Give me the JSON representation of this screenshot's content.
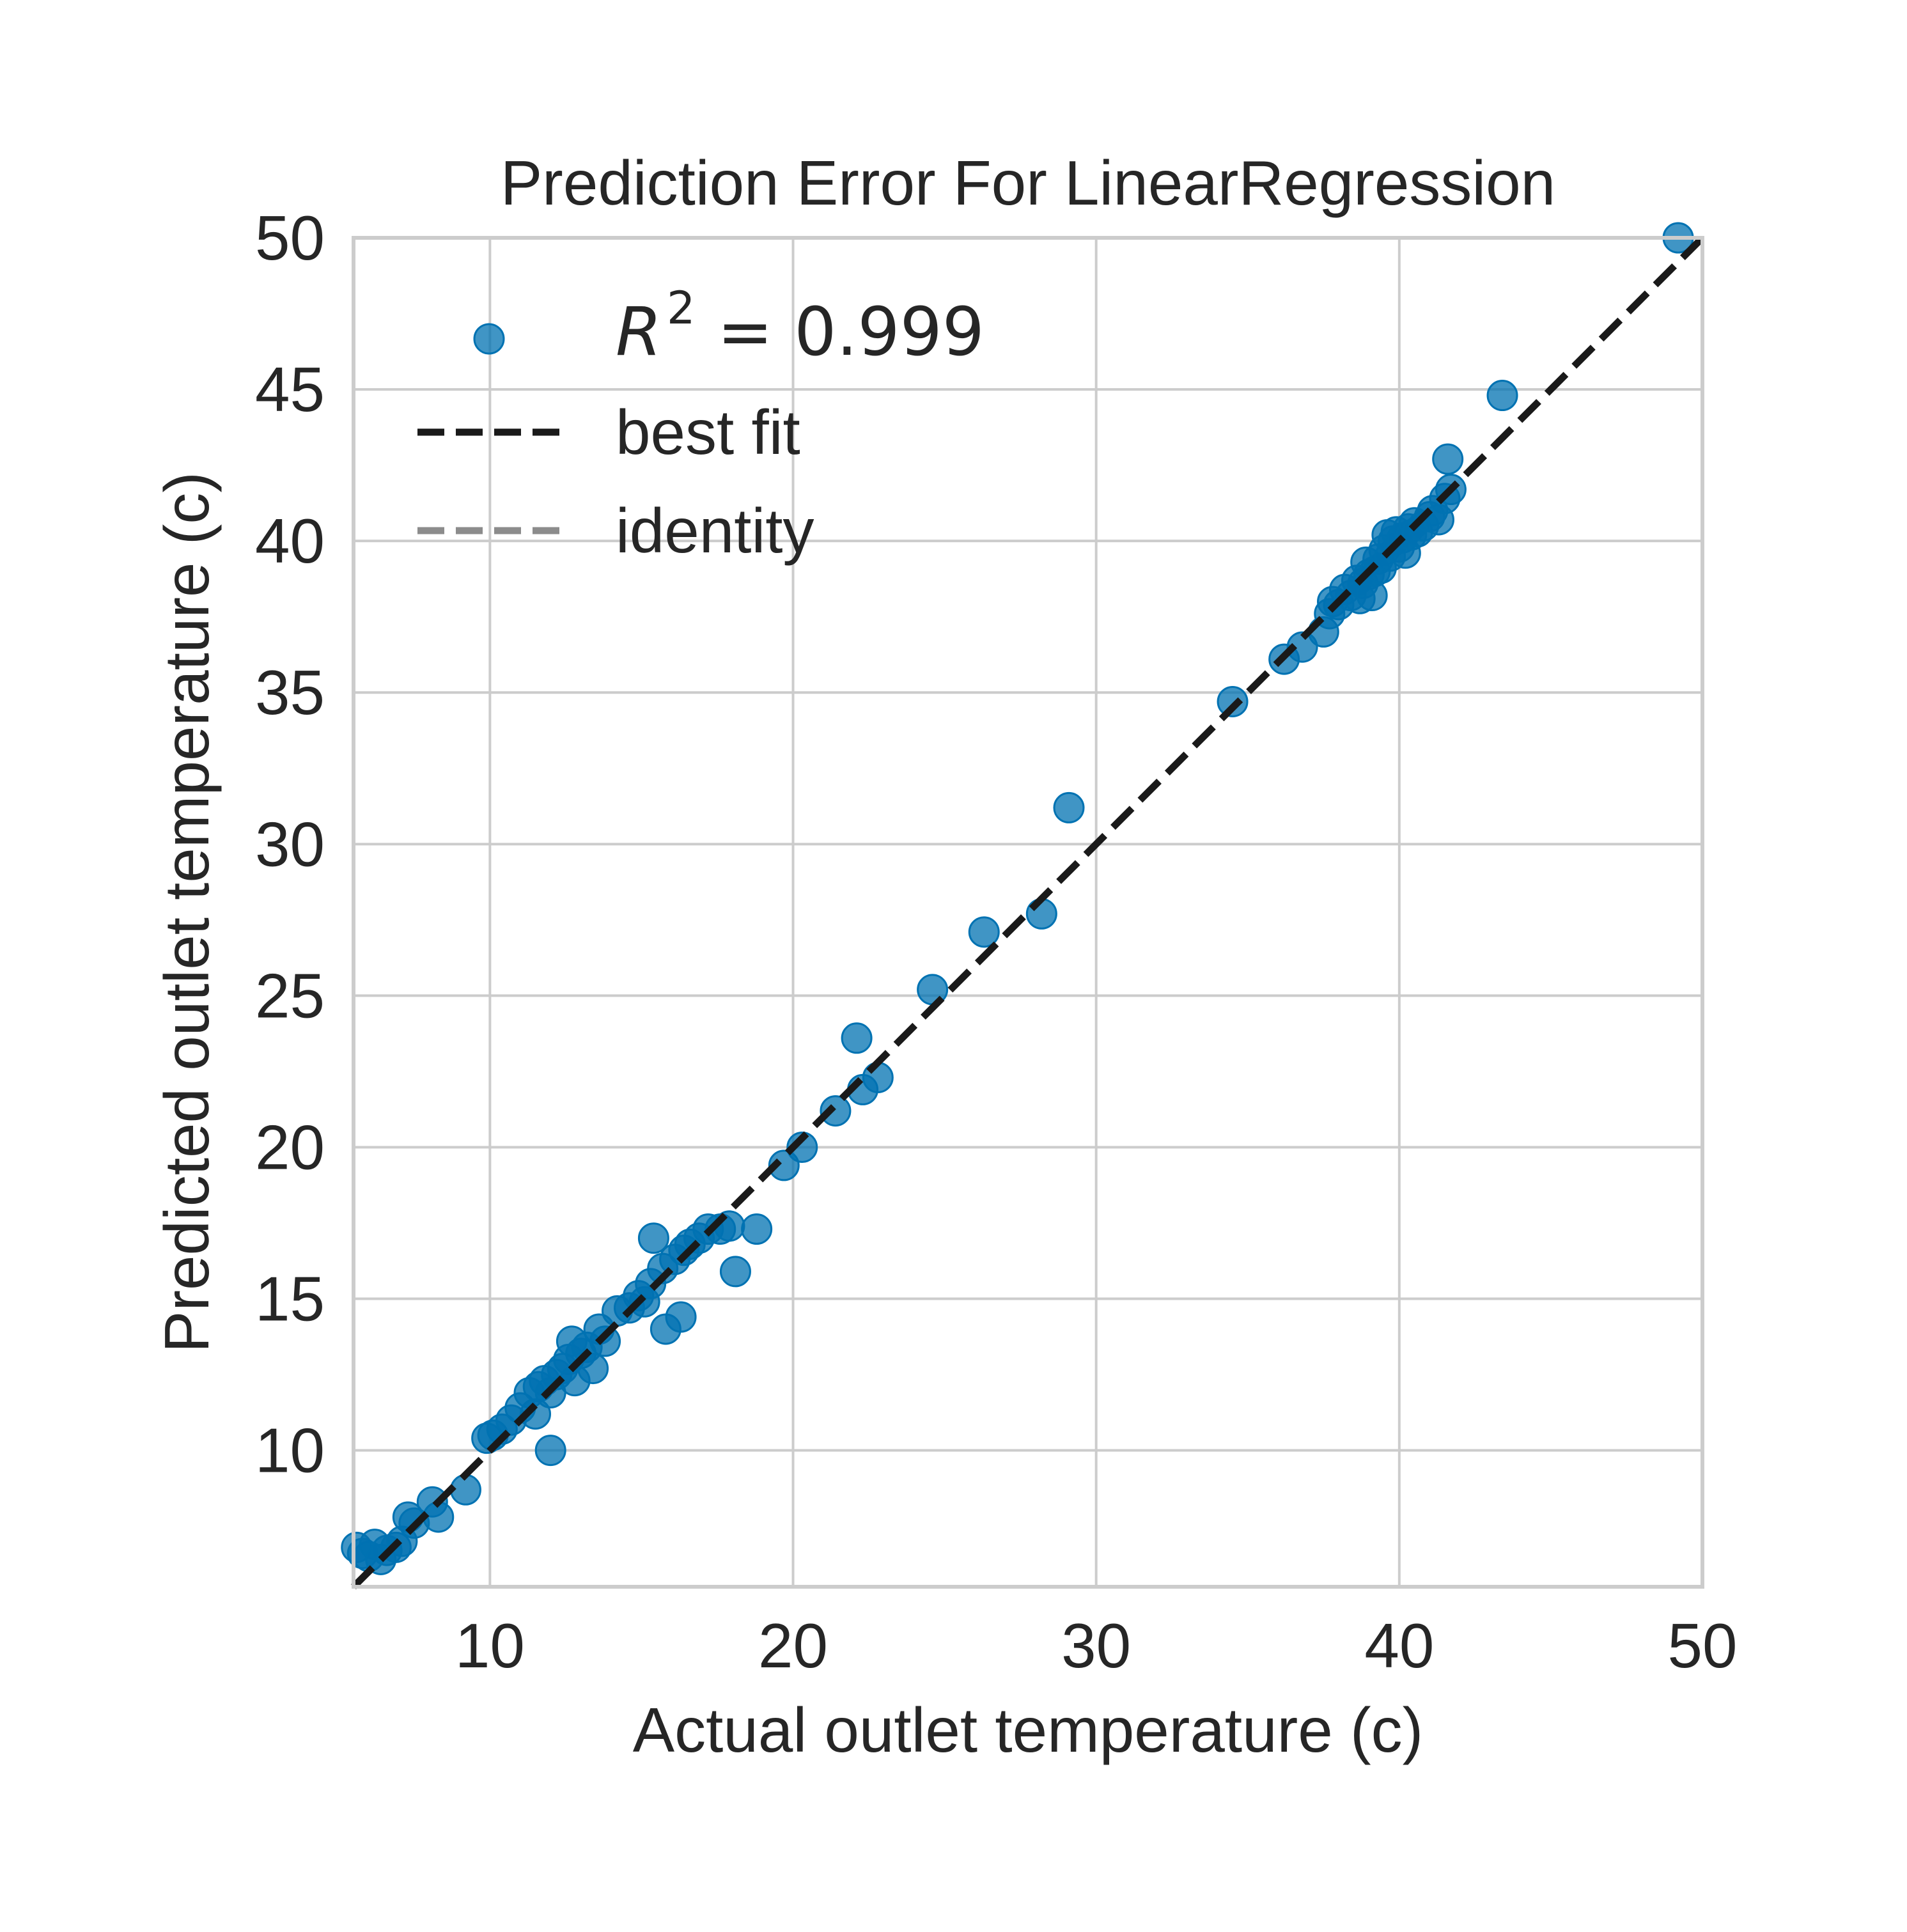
{
  "chart_data": {
    "type": "scatter",
    "title": "Prediction Error For LinearRegression",
    "xlabel": "Actual outlet temperature (c)",
    "ylabel": "Predicted outlet temperature (c)",
    "xlim": [
      5.5,
      50
    ],
    "ylim": [
      5.5,
      50
    ],
    "xticks": [
      "10",
      "20",
      "30",
      "40",
      "50"
    ],
    "yticks": [
      "10",
      "15",
      "20",
      "25",
      "30",
      "35",
      "40",
      "45",
      "50"
    ],
    "xtick_values": [
      10,
      20,
      30,
      40,
      50
    ],
    "ytick_values": [
      10,
      15,
      20,
      25,
      30,
      35,
      40,
      45,
      50
    ],
    "grid": true,
    "legend_position": "top-left",
    "legend": {
      "r2_symbol": "R",
      "r2_exponent": "2",
      "r2_value": "= 0.999",
      "best_fit": "best fit",
      "identity": "identity"
    },
    "colors": {
      "points": "#0072B2",
      "best_fit": "#1a1a1a",
      "identity": "#8c8c8c",
      "grid": "#cccccc",
      "text": "#262626"
    },
    "best_fit_line": {
      "x": [
        5.5,
        50
      ],
      "y": [
        5.5,
        50
      ]
    },
    "series": [
      {
        "type": "scatter",
        "points": [
          [
            5.6,
            6.8
          ],
          [
            5.8,
            6.6
          ],
          [
            6.0,
            6.5
          ],
          [
            6.2,
            6.9
          ],
          [
            6.4,
            6.4
          ],
          [
            6.6,
            6.7
          ],
          [
            6.9,
            6.8
          ],
          [
            7.1,
            7.0
          ],
          [
            7.3,
            7.8
          ],
          [
            7.5,
            7.6
          ],
          [
            8.1,
            8.3
          ],
          [
            8.3,
            7.8
          ],
          [
            9.2,
            8.7
          ],
          [
            9.9,
            10.4
          ],
          [
            10.1,
            10.5
          ],
          [
            10.4,
            10.7
          ],
          [
            10.7,
            11.0
          ],
          [
            11.0,
            11.4
          ],
          [
            11.3,
            11.9
          ],
          [
            11.5,
            11.2
          ],
          [
            11.6,
            12.1
          ],
          [
            11.8,
            12.3
          ],
          [
            12.0,
            11.9
          ],
          [
            12.0,
            10.0
          ],
          [
            12.2,
            12.5
          ],
          [
            12.4,
            12.7
          ],
          [
            12.6,
            13.0
          ],
          [
            12.7,
            13.6
          ],
          [
            12.8,
            12.3
          ],
          [
            13.0,
            13.2
          ],
          [
            13.2,
            13.4
          ],
          [
            13.4,
            12.7
          ],
          [
            13.6,
            14.0
          ],
          [
            13.8,
            13.6
          ],
          [
            14.2,
            14.6
          ],
          [
            14.6,
            14.7
          ],
          [
            14.9,
            15.1
          ],
          [
            15.1,
            14.9
          ],
          [
            15.3,
            15.5
          ],
          [
            15.4,
            17.0
          ],
          [
            15.7,
            16.0
          ],
          [
            15.8,
            14.0
          ],
          [
            16.1,
            16.3
          ],
          [
            16.3,
            14.4
          ],
          [
            16.4,
            16.6
          ],
          [
            16.6,
            16.8
          ],
          [
            16.9,
            17.0
          ],
          [
            17.2,
            17.3
          ],
          [
            17.6,
            17.3
          ],
          [
            17.9,
            17.4
          ],
          [
            18.1,
            15.9
          ],
          [
            18.8,
            17.3
          ],
          [
            19.7,
            19.4
          ],
          [
            20.3,
            20.0
          ],
          [
            21.4,
            21.2
          ],
          [
            22.1,
            23.6
          ],
          [
            22.3,
            21.9
          ],
          [
            22.8,
            22.3
          ],
          [
            24.6,
            25.2
          ],
          [
            26.3,
            27.1
          ],
          [
            28.2,
            27.7
          ],
          [
            29.1,
            31.2
          ],
          [
            34.5,
            34.7
          ],
          [
            36.2,
            36.1
          ],
          [
            36.8,
            36.5
          ],
          [
            37.5,
            37.0
          ],
          [
            37.7,
            37.6
          ],
          [
            37.8,
            38.0
          ],
          [
            38.0,
            37.9
          ],
          [
            38.2,
            38.4
          ],
          [
            38.4,
            38.2
          ],
          [
            38.6,
            38.7
          ],
          [
            38.7,
            38.1
          ],
          [
            38.8,
            38.6
          ],
          [
            38.9,
            39.3
          ],
          [
            39.0,
            38.9
          ],
          [
            39.1,
            38.2
          ],
          [
            39.2,
            39.0
          ],
          [
            39.3,
            39.4
          ],
          [
            39.4,
            39.1
          ],
          [
            39.5,
            39.7
          ],
          [
            39.6,
            40.2
          ],
          [
            39.7,
            39.5
          ],
          [
            39.8,
            40.0
          ],
          [
            39.9,
            40.3
          ],
          [
            40.0,
            39.8
          ],
          [
            40.1,
            40.1
          ],
          [
            40.2,
            39.6
          ],
          [
            40.3,
            40.4
          ],
          [
            40.4,
            40.2
          ],
          [
            40.5,
            40.6
          ],
          [
            40.6,
            40.3
          ],
          [
            40.8,
            40.5
          ],
          [
            41.0,
            40.8
          ],
          [
            41.1,
            41.0
          ],
          [
            41.3,
            40.7
          ],
          [
            41.5,
            41.4
          ],
          [
            41.7,
            41.7
          ],
          [
            41.6,
            42.7
          ],
          [
            43.4,
            44.8
          ],
          [
            49.2,
            50.0
          ]
        ]
      }
    ]
  }
}
